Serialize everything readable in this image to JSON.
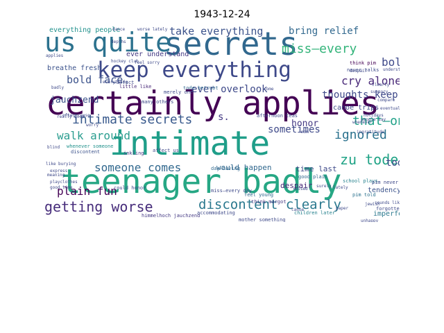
{
  "title": "1943-12-24",
  "palette": [
    "#440154",
    "#482878",
    "#3e4989",
    "#31688e",
    "#26828e",
    "#1f9e89",
    "#35b779",
    "#6ece58",
    "#b5de2b"
  ],
  "words": [
    {
      "text": "certainly applies",
      "color": "#440154"
    },
    {
      "text": "intimate",
      "color": "#1f9e89"
    },
    {
      "text": "teenager badly",
      "color": "#26a784"
    },
    {
      "text": "secrets",
      "color": "#31688e"
    },
    {
      "text": "us quite",
      "color": "#2c728e"
    },
    {
      "text": "keep everything",
      "color": "#3e4989"
    },
    {
      "text": "getting worse",
      "color": "#472d7b"
    },
    {
      "text": "discontent clearly",
      "color": "#2a788e"
    },
    {
      "text": "intimate secrets",
      "color": "#38598c"
    },
    {
      "text": "miss—every",
      "color": "#33b47a"
    },
    {
      "text": "take everything",
      "color": "#3b528b"
    },
    {
      "text": "bring relief",
      "color": "#31688e"
    },
    {
      "text": "bold face",
      "color": "#3b528b"
    },
    {
      "text": "cry alone",
      "color": "#482878"
    },
    {
      "text": "thoughts keep",
      "color": "#3e4989"
    },
    {
      "text": "jauchzend",
      "color": "#3b528b"
    },
    {
      "text": "ever overlook",
      "color": "#3e4989"
    },
    {
      "text": "that—on",
      "color": "#1fa187"
    },
    {
      "text": "zu tode",
      "color": "#20a386"
    },
    {
      "text": "ignored",
      "color": "#2c728e"
    },
    {
      "text": "walk around",
      "color": "#2a9d8f"
    },
    {
      "text": "someone comes",
      "color": "#31688e"
    },
    {
      "text": "plain fun",
      "color": "#440154"
    },
    {
      "text": "honor",
      "color": "#443983"
    },
    {
      "text": "sometimes",
      "color": "#3e4989"
    },
    {
      "text": "tode",
      "color": "#3e4989"
    },
    {
      "text": "bold",
      "color": "#3e4989"
    },
    {
      "text": "breathe fresh",
      "color": "#3b528b"
    },
    {
      "text": "everything people",
      "color": "#21918c"
    },
    {
      "text": "ever understand",
      "color": "#443983"
    },
    {
      "text": "despair",
      "color": "#482878"
    },
    {
      "text": "time last",
      "color": "#3e4989"
    },
    {
      "text": "would happen",
      "color": "#31688e"
    },
    {
      "text": "tendency",
      "color": "#3b528b"
    },
    {
      "text": "imperfect",
      "color": "#2a788e"
    },
    {
      "text": "canoe trips",
      "color": "#3e4989"
    },
    {
      "text": "s.",
      "color": "#443983"
    },
    {
      "text": "afternoon teas",
      "color": "#3e4989"
    },
    {
      "text": "school plays",
      "color": "#26828e"
    },
    {
      "text": "pim told",
      "color": "#2c728e"
    },
    {
      "text": "children later",
      "color": "#26828e"
    },
    {
      "text": "mother something",
      "color": "#3e4989"
    },
    {
      "text": "himmelhoch jauchzend",
      "color": "#443983"
    },
    {
      "text": "accommodating",
      "color": "#3e4989"
    },
    {
      "text": "feel young",
      "color": "#31688e"
    },
    {
      "text": "think margot",
      "color": "#443983"
    },
    {
      "text": "could honor",
      "color": "#3e4989"
    },
    {
      "text": "whenever someone",
      "color": "#21918c"
    },
    {
      "text": "discontent",
      "color": "#3b528b"
    },
    {
      "text": "inkling",
      "color": "#443983"
    },
    {
      "text": "affect us",
      "color": "#3e4989"
    },
    {
      "text": "many others",
      "color": "#3e4989"
    },
    {
      "text": "day—having",
      "color": "#31688e"
    },
    {
      "text": "miss—every day",
      "color": "#3e4989"
    },
    {
      "text": "merely one",
      "color": "#3e4989"
    },
    {
      "text": "little like",
      "color": "#482878"
    },
    {
      "text": "affect",
      "color": "#3e4989"
    },
    {
      "text": "tode betrubt",
      "color": "#31688e"
    },
    {
      "text": "never talks",
      "color": "#3e4989"
    },
    {
      "text": "think pim",
      "color": "#440154"
    },
    {
      "text": "good plain",
      "color": "#31688e"
    },
    {
      "text": "pim never",
      "color": "#3e4989"
    },
    {
      "text": "forgotten",
      "color": "#3e4989"
    },
    {
      "text": "ingratitude",
      "color": "#3e4989"
    },
    {
      "text": "like burying",
      "color": "#3e4989"
    },
    {
      "text": "meaning",
      "color": "#3e4989"
    },
    {
      "text": "good time",
      "color": "#3e4989"
    },
    {
      "text": "feel sorry",
      "color": "#3e4989"
    },
    {
      "text": "compare",
      "color": "#3e4989"
    },
    {
      "text": "everything",
      "color": "#3e4989"
    },
    {
      "text": "people say",
      "color": "#3e4989"
    },
    {
      "text": "applies",
      "color": "#3e4989"
    },
    {
      "text": "summary",
      "color": "#3e4989"
    },
    {
      "text": "holidays",
      "color": "#3e4989"
    },
    {
      "text": "really good",
      "color": "#3e4989"
    },
    {
      "text": "often cause",
      "color": "#3e4989"
    },
    {
      "text": "worse lately",
      "color": "#3e4989"
    },
    {
      "text": "hockey club",
      "color": "#3e4989"
    },
    {
      "text": "blind",
      "color": "#3e4989"
    },
    {
      "text": "worry",
      "color": "#3e4989"
    },
    {
      "text": "unhappy",
      "color": "#3e4989"
    },
    {
      "text": "jewish",
      "color": "#3e4989"
    },
    {
      "text": "canoe",
      "color": "#3e4989"
    },
    {
      "text": "raised",
      "color": "#3e4989"
    },
    {
      "text": "come",
      "color": "#3e4989"
    },
    {
      "text": "clearly",
      "color": "#3e4989"
    },
    {
      "text": "whenever",
      "color": "#3e4989"
    },
    {
      "text": "understand",
      "color": "#3e4989"
    },
    {
      "text": "mom",
      "color": "#3e4989"
    },
    {
      "text": "paper",
      "color": "#3e4989"
    },
    {
      "text": "express",
      "color": "#3e4989"
    },
    {
      "text": "playclothes",
      "color": "#3e4989"
    },
    {
      "text": "sounds like",
      "color": "#3e4989"
    },
    {
      "text": "eventually",
      "color": "#3e4989"
    },
    {
      "text": "dance",
      "color": "#3e4989"
    },
    {
      "text": "despair",
      "color": "#3e4989"
    },
    {
      "text": "depths",
      "color": "#3e4989"
    },
    {
      "text": "lately",
      "color": "#3e4989"
    },
    {
      "text": "surely",
      "color": "#3e4989"
    },
    {
      "text": "badly",
      "color": "#3e4989"
    }
  ]
}
